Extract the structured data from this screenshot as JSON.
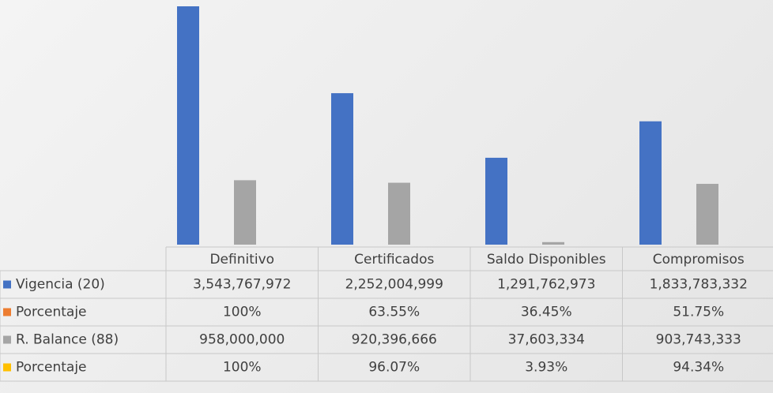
{
  "chart_data": {
    "type": "bar",
    "categories": [
      "Definitivo",
      "Certificados",
      "Saldo Disponibles",
      "Compromisos"
    ],
    "series": [
      {
        "name": "Vigencia (20)",
        "color": "#4472c4",
        "values": [
          3543767972,
          2252004999,
          1291762973,
          1833783332
        ],
        "value_labels": [
          "3,543,767,972",
          "2,252,004,999",
          "1,291,762,973",
          "1,833,783,332"
        ]
      },
      {
        "name": "Porcentaje",
        "color": "#ed7d31",
        "values": [
          100,
          63.55,
          36.45,
          51.75
        ],
        "value_labels": [
          "100%",
          "63.55%",
          "36.45%",
          "51.75%"
        ]
      },
      {
        "name": "R. Balance (88)",
        "color": "#a5a5a5",
        "values": [
          958000000,
          920396666,
          37603334,
          903743333
        ],
        "value_labels": [
          "958,000,000",
          "920,396,666",
          "37,603,334",
          "903,743,333"
        ]
      },
      {
        "name": "Porcentaje",
        "color": "#ffc000",
        "values": [
          100,
          96.07,
          3.93,
          94.34
        ],
        "value_labels": [
          "100%",
          "96.07%",
          "3.93%",
          "94.34%"
        ]
      }
    ]
  }
}
